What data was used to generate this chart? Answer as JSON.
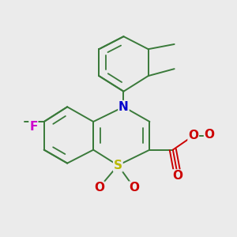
{
  "bg_color": "#ebebeb",
  "bond_color": "#3a7a3a",
  "atom_colors": {
    "S": "#b8b800",
    "N": "#0000cc",
    "F": "#cc00cc",
    "O": "#cc0000",
    "C": "#3a7a3a"
  },
  "lw": 1.4,
  "inner_lw": 1.3,
  "font_size": 10.5
}
